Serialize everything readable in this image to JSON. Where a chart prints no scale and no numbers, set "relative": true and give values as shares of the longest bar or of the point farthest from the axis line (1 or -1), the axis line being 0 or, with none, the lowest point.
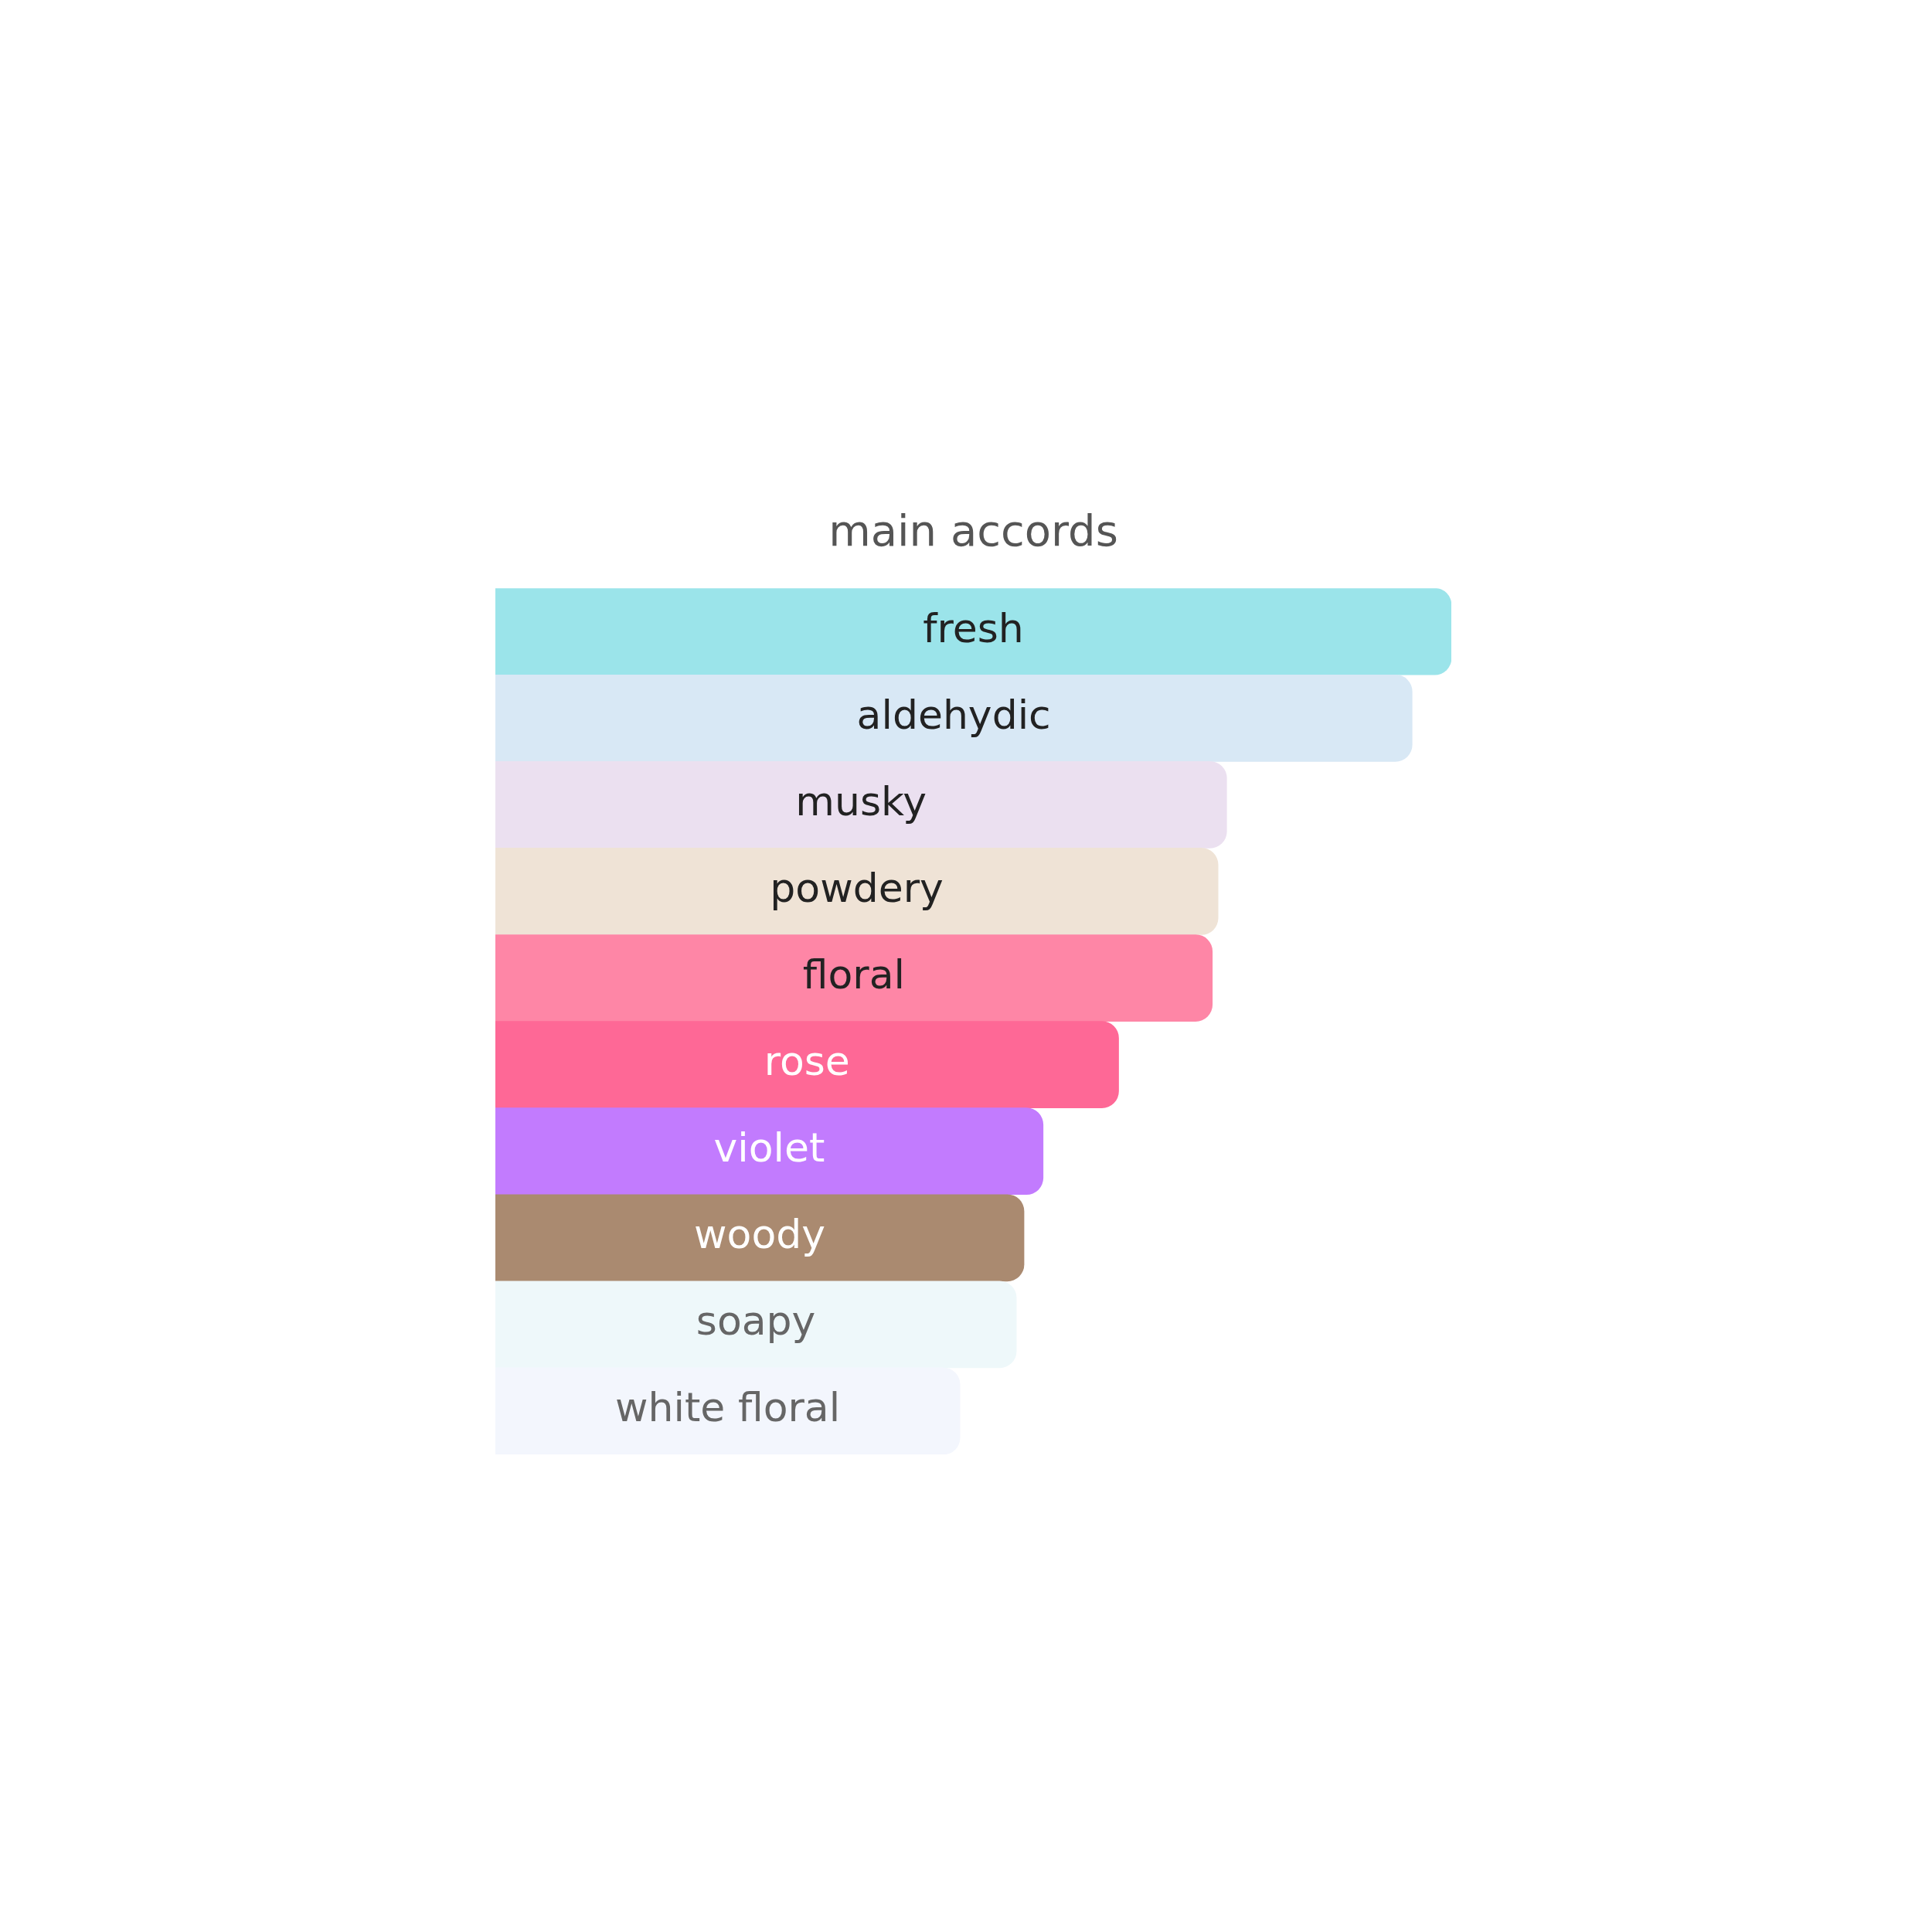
{
  "chart_data": {
    "type": "bar",
    "orientation": "horizontal",
    "relative": true,
    "title": "main accords",
    "categories": [
      "fresh",
      "aldehydic",
      "musky",
      "powdery",
      "floral",
      "rose",
      "violet",
      "woody",
      "soapy",
      "white floral"
    ],
    "values": [
      1,
      0.959,
      0.765,
      0.756,
      0.75,
      0.652,
      0.573,
      0.553,
      0.545,
      0.486
    ],
    "colors": [
      "#9be4ea",
      "#d8e8f5",
      "#ebe0f0",
      "#efe3d6",
      "#fe86a6",
      "#fe6896",
      "#c27bfe",
      "#aa8a70",
      "#eef8fa",
      "#f3f6fd"
    ],
    "legend": false
  }
}
